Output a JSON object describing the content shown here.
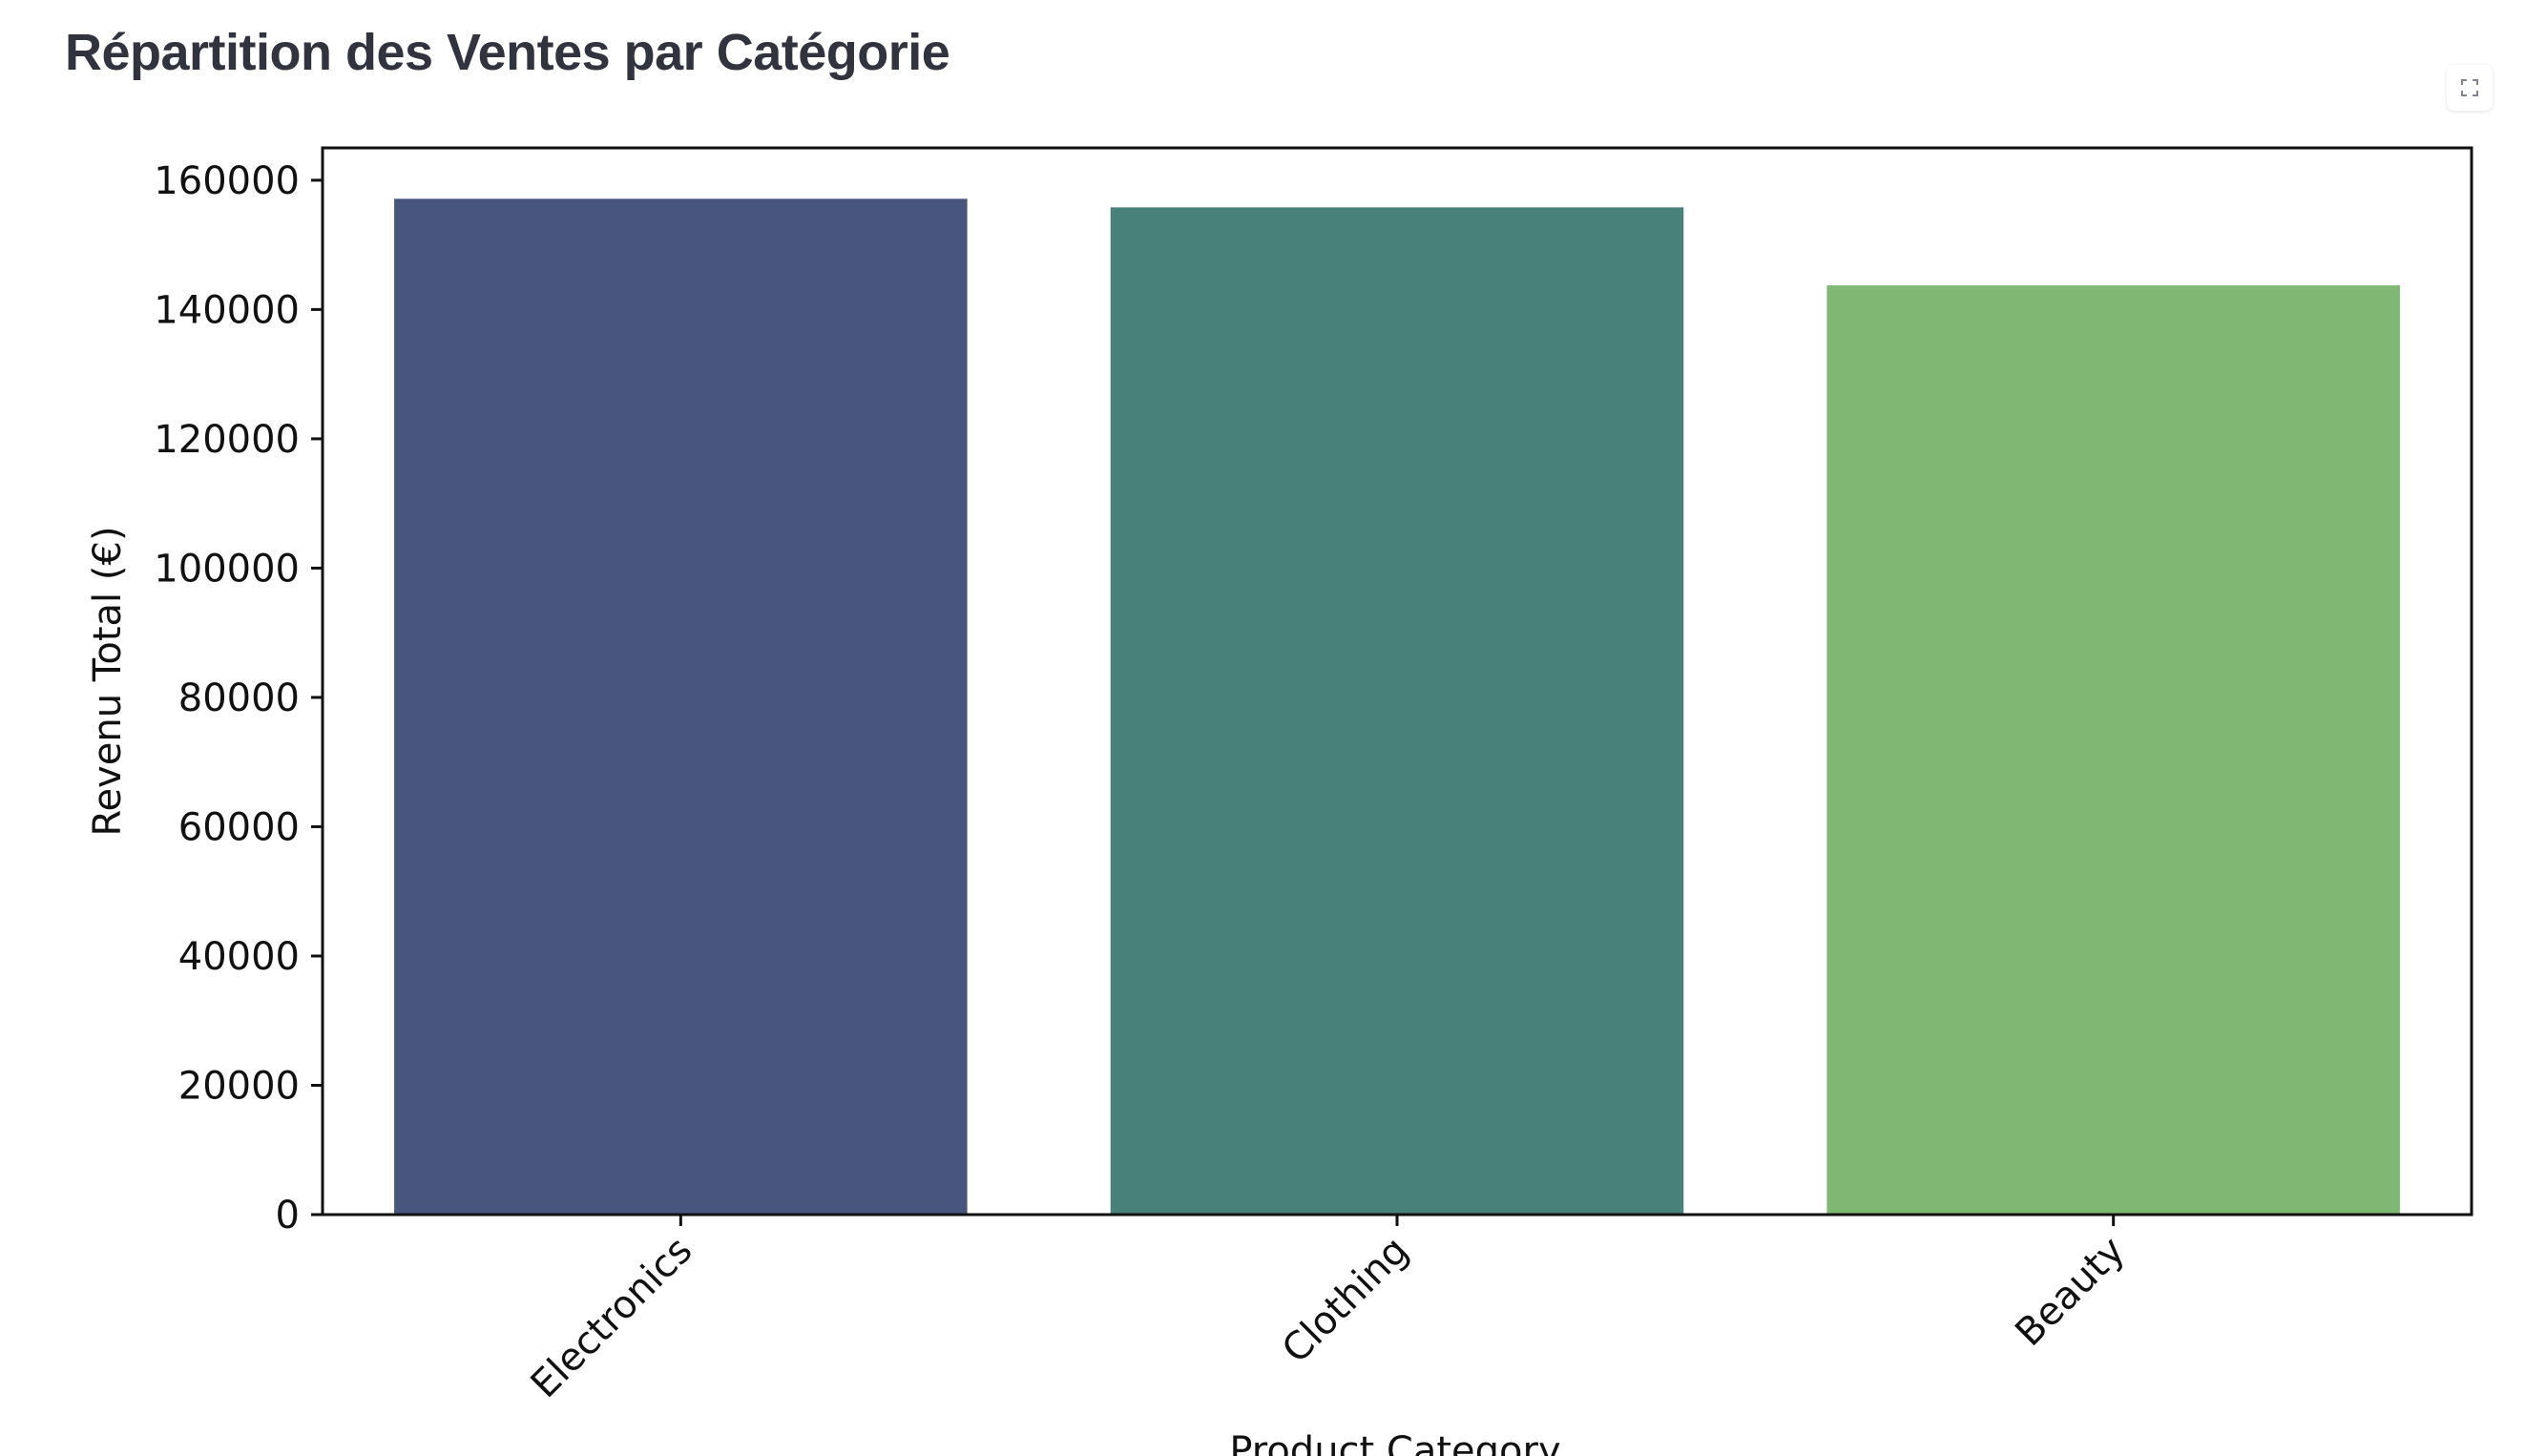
{
  "page": {
    "title": "Répartition des Ventes par Catégorie",
    "fullscreen_icon": "expand-icon"
  },
  "chart_data": {
    "type": "bar",
    "categories": [
      "Electronics",
      "Clothing",
      "Beauty"
    ],
    "values": [
      156905,
      155580,
      143515
    ],
    "colors": [
      "#48567d",
      "#48817a",
      "#7eb873"
    ],
    "xlabel": "Product Category",
    "ylabel": "Revenu Total (€)",
    "ylim": [
      0,
      165000
    ],
    "yticks": [
      0,
      20000,
      40000,
      60000,
      80000,
      100000,
      120000,
      140000,
      160000
    ],
    "grid": false,
    "legend": "none"
  }
}
